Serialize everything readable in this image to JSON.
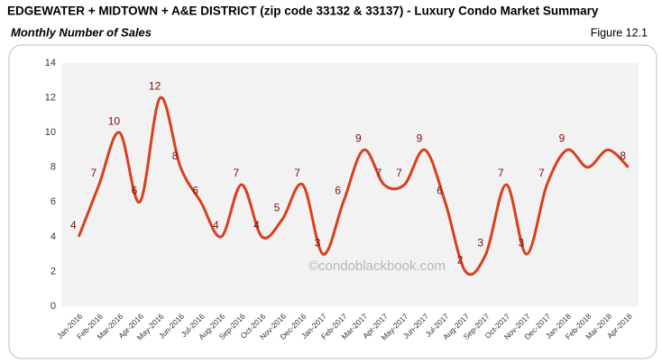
{
  "chart_data": {
    "type": "line",
    "title": "EDGEWATER + MIDTOWN + A&E DISTRICT (zip code 33132 & 33137) - Luxury Condo Market Summary",
    "subtitle": "Monthly Number of Sales",
    "figure_label": "Figure 12.1",
    "watermark": "©condoblackbook.com",
    "categories": [
      "Jan-2016",
      "Feb-2016",
      "Mar-2016",
      "Apr-2016",
      "May-2016",
      "Jun-2016",
      "Jul-2016",
      "Aug-2016",
      "Sep-2016",
      "Oct-2016",
      "Nov-2016",
      "Dec-2016",
      "Jan-2017",
      "Feb-2017",
      "Mar-2017",
      "Apr-2017",
      "May-2017",
      "Jun-2017",
      "Jul-2017",
      "Aug-2017",
      "Sep-2017",
      "Oct-2017",
      "Nov-2017",
      "Dec-2017",
      "Jan-2018",
      "Feb-2018",
      "Mar-2018",
      "Apr-2018"
    ],
    "values": [
      4,
      7,
      10,
      6,
      12,
      8,
      6,
      4,
      7,
      4,
      5,
      7,
      3,
      6,
      9,
      7,
      7,
      9,
      6,
      2,
      3,
      7,
      3,
      7,
      9,
      8,
      9,
      8
    ],
    "value_labels": [
      "4",
      "7",
      "10",
      "6",
      "12",
      "8",
      "6",
      "4",
      "7",
      "4",
      "5",
      "7",
      "3",
      "6",
      "9",
      "7",
      "7",
      "9",
      "6",
      "2",
      "3",
      "7",
      "3",
      "7",
      "9",
      null,
      null,
      "8"
    ],
    "color": "#d8401c",
    "ylim": [
      0,
      14
    ],
    "yticks": [
      0,
      2,
      4,
      6,
      8,
      10,
      12,
      14
    ],
    "grid": false
  }
}
